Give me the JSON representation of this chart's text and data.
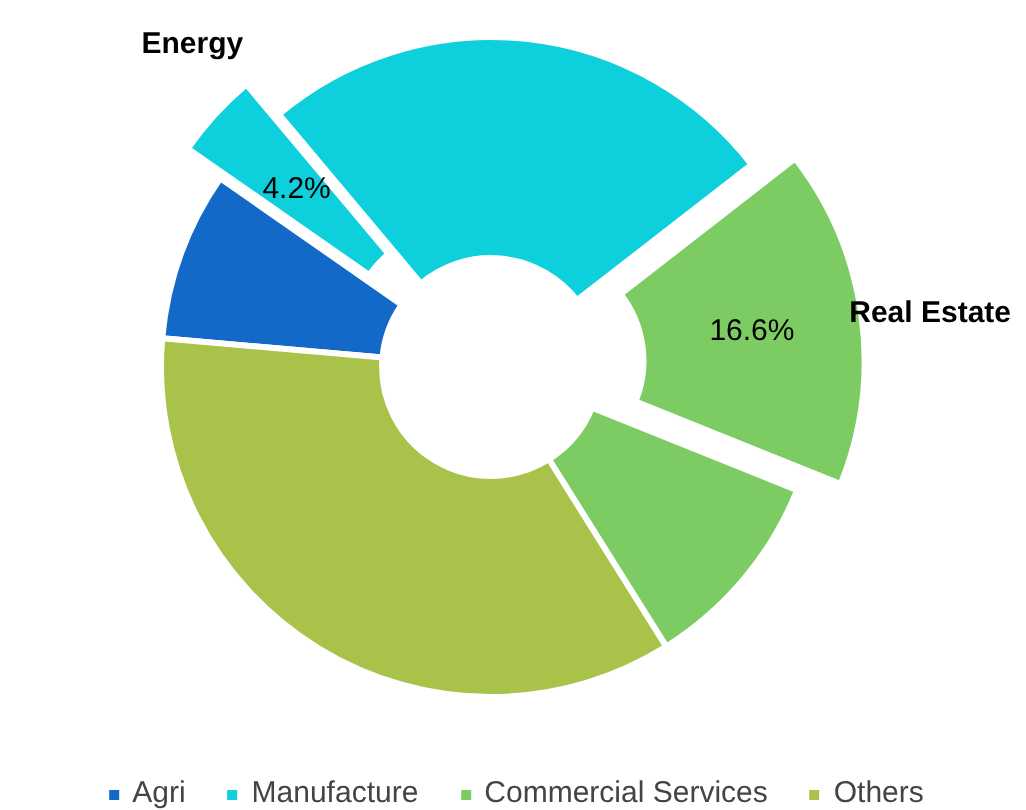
{
  "chart_data": {
    "type": "donut",
    "categories": [
      "Agri",
      "Energy",
      "Manufacture",
      "Real Estate",
      "Commercial Services",
      "Others"
    ],
    "values": [
      8.3,
      4.2,
      25.6,
      16.6,
      10.0,
      35.3
    ],
    "colors": [
      "#1269c7",
      "#0dd0dc",
      "#0dd0dc",
      "#7ccc63",
      "#7ccc63",
      "#a9c34a"
    ],
    "value_labels": [
      null,
      "4.2%",
      null,
      "16.6%",
      null,
      null
    ],
    "legend": "bottom"
  }
}
